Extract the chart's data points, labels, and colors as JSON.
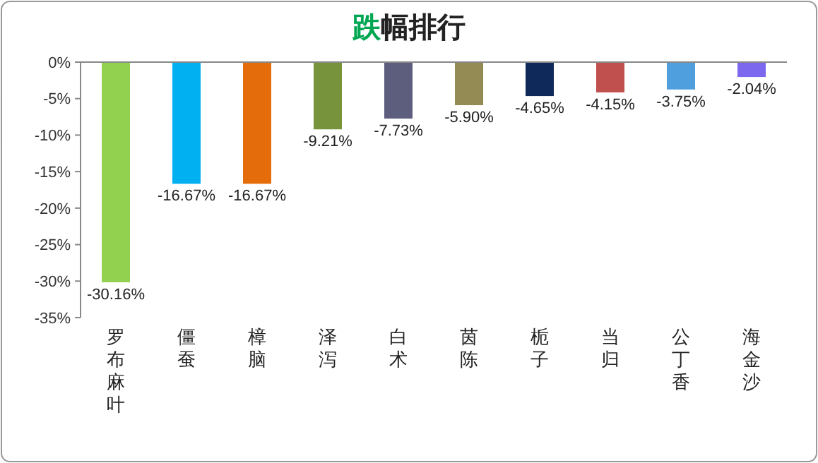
{
  "chart_data": {
    "type": "bar",
    "title": "跌幅排行",
    "categories": [
      "罗布麻叶",
      "僵蚕",
      "樟脑",
      "泽泻",
      "白术",
      "茵陈",
      "栀子",
      "当归",
      "公丁香",
      "海金沙"
    ],
    "values": [
      -30.16,
      -16.67,
      -16.67,
      -9.21,
      -7.73,
      -5.9,
      -4.65,
      -4.15,
      -3.75,
      -2.04
    ],
    "colors": [
      "#92d050",
      "#00b0f0",
      "#e46c0a",
      "#77933c",
      "#5d5d7e",
      "#948a54",
      "#0f2a5a",
      "#c0504d",
      "#4f9fdf",
      "#7b68ee"
    ],
    "value_labels": [
      "-30.16%",
      "-16.67%",
      "-16.67%",
      "-9.21%",
      "-7.73%",
      "-5.90%",
      "-4.65%",
      "-4.15%",
      "-3.75%",
      "-2.04%"
    ],
    "ylim": [
      -35,
      0
    ],
    "yticks": [
      {
        "value": 0,
        "label": "0%"
      },
      {
        "value": -5,
        "label": "-5%"
      },
      {
        "value": -10,
        "label": "-10%"
      },
      {
        "value": -15,
        "label": "-15%"
      },
      {
        "value": -20,
        "label": "-20%"
      },
      {
        "value": -25,
        "label": "-25%"
      },
      {
        "value": -30,
        "label": "-30%"
      },
      {
        "value": -35,
        "label": "-35%"
      }
    ],
    "grid": false
  }
}
